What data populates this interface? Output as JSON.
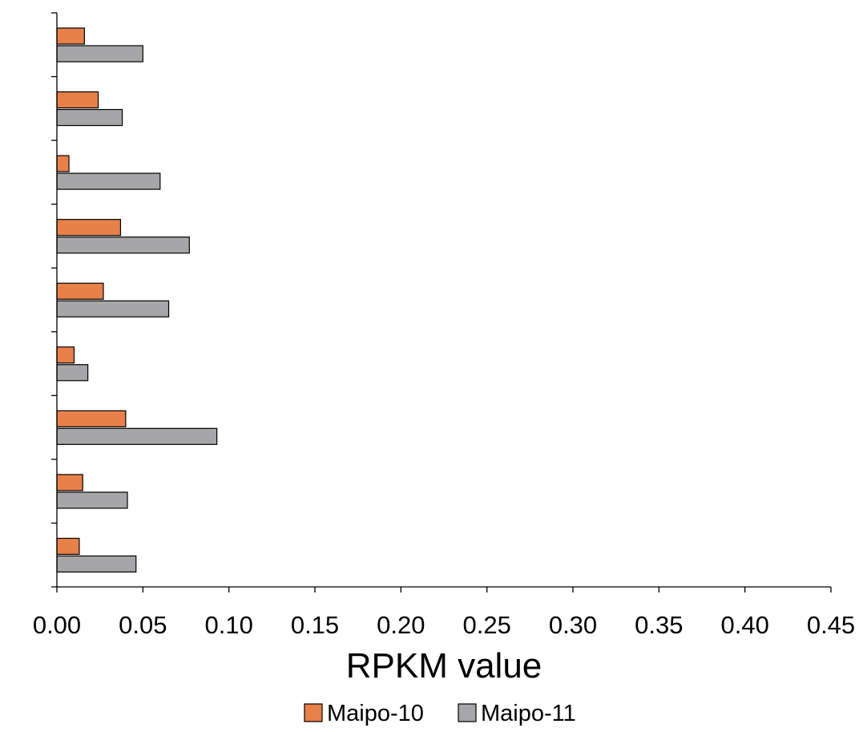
{
  "chart_data": {
    "type": "bar",
    "orientation": "horizontal",
    "categories": [
      "",
      "",
      "",
      "",
      "",
      "",
      "",
      "",
      ""
    ],
    "series": [
      {
        "name": "Maipo-10",
        "color": "#E8804A",
        "values": [
          0.016,
          0.024,
          0.007,
          0.037,
          0.027,
          0.01,
          0.04,
          0.015,
          0.013
        ]
      },
      {
        "name": "Maipo-11",
        "color": "#A6A6A8",
        "values": [
          0.05,
          0.038,
          0.06,
          0.077,
          0.065,
          0.018,
          0.093,
          0.041,
          0.046
        ]
      }
    ],
    "x_ticks": [
      "0.00",
      "0.05",
      "0.10",
      "0.15",
      "0.20",
      "0.25",
      "0.30",
      "0.35",
      "0.40",
      "0.45"
    ],
    "xlim": [
      0,
      0.45
    ],
    "xlabel": "RPKM value",
    "ylabel": "",
    "title": "",
    "grid": false,
    "legend_position": "bottom"
  }
}
